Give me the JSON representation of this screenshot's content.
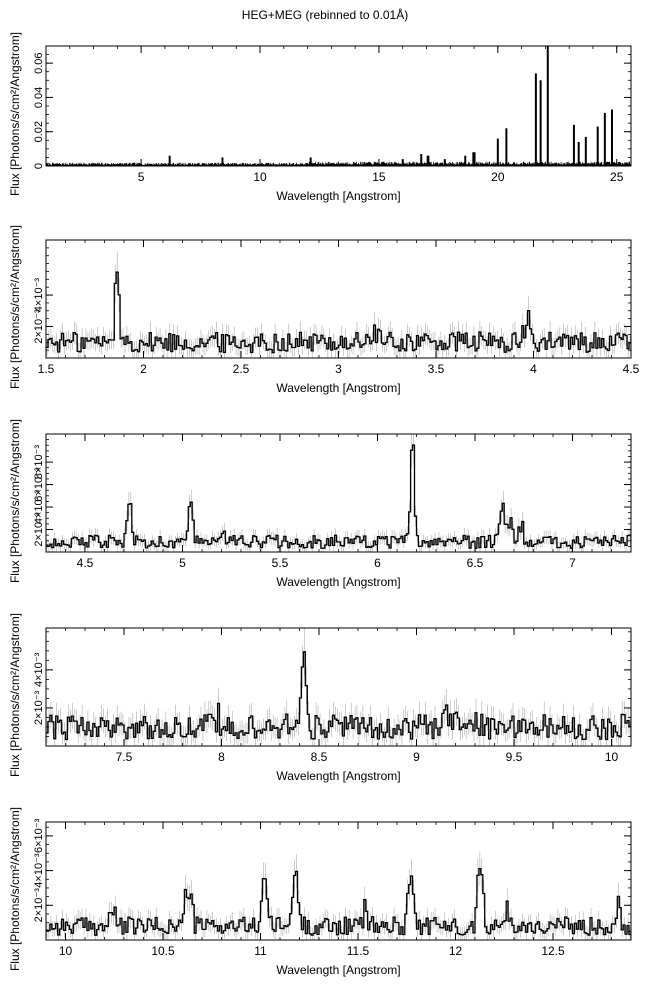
{
  "title": "HEG+MEG (rebinned to 0.01Å)",
  "chart_data": [
    {
      "type": "line",
      "xlabel": "Wavelength [Angstrom]",
      "ylabel": "Flux [Photons/s/cm²/Angstrom]",
      "xlim": [
        1.0,
        25.6
      ],
      "ylim": [
        0,
        0.07
      ],
      "xticks": [
        5,
        10,
        15,
        20,
        25
      ],
      "xtick_labels": [
        "5",
        "10",
        "15",
        "20",
        "25"
      ],
      "yticks": [
        0,
        0.02,
        0.04,
        0.06
      ],
      "ytick_labels": [
        "0",
        "0.02",
        "0.04",
        "0.06"
      ],
      "yscale_label": "",
      "baseline": 0.0015,
      "lines": [
        {
          "x": 6.2,
          "y": 0.006
        },
        {
          "x": 8.42,
          "y": 0.005
        },
        {
          "x": 12.13,
          "y": 0.005
        },
        {
          "x": 16.0,
          "y": 0.004
        },
        {
          "x": 16.78,
          "y": 0.007
        },
        {
          "x": 17.05,
          "y": 0.006
        },
        {
          "x": 17.08,
          "y": 0.006
        },
        {
          "x": 17.77,
          "y": 0.004
        },
        {
          "x": 18.63,
          "y": 0.006
        },
        {
          "x": 18.97,
          "y": 0.008
        },
        {
          "x": 19.02,
          "y": 0.008
        },
        {
          "x": 20.0,
          "y": 0.016
        },
        {
          "x": 20.36,
          "y": 0.022
        },
        {
          "x": 21.6,
          "y": 0.054
        },
        {
          "x": 21.8,
          "y": 0.05
        },
        {
          "x": 22.1,
          "y": 0.07
        },
        {
          "x": 23.2,
          "y": 0.024
        },
        {
          "x": 23.4,
          "y": 0.014
        },
        {
          "x": 23.7,
          "y": 0.017
        },
        {
          "x": 24.2,
          "y": 0.023
        },
        {
          "x": 24.5,
          "y": 0.031
        },
        {
          "x": 24.8,
          "y": 0.033
        }
      ]
    },
    {
      "type": "line",
      "xlabel": "Wavelength [Angstrom]",
      "ylabel": "Flux [Photons/s/cm²/Angstrom]",
      "xlim": [
        1.5,
        4.5
      ],
      "ylim": [
        0,
        0.0075
      ],
      "xticks": [
        1.5,
        2,
        2.5,
        3,
        3.5,
        4,
        4.5
      ],
      "xtick_labels": [
        "1.5",
        "2",
        "2.5",
        "3",
        "3.5",
        "4",
        "4.5"
      ],
      "yticks": [
        0.002,
        0.004
      ],
      "ytick_labels": [
        "2×10⁻³",
        "4×10⁻³"
      ],
      "yscale_label": "",
      "baseline": 0.001,
      "lines": [
        {
          "x": 1.865,
          "y": 0.0048,
          "w": 0.012
        },
        {
          "x": 3.19,
          "y": 0.0017,
          "w": 0.015
        },
        {
          "x": 3.97,
          "y": 0.0022,
          "w": 0.015
        }
      ]
    },
    {
      "type": "line",
      "xlabel": "Wavelength [Angstrom]",
      "ylabel": "Flux [Photons/s/cm²/Angstrom]",
      "xlim": [
        4.3,
        7.3
      ],
      "ylim": [
        0,
        0.0105
      ],
      "xticks": [
        4.5,
        5,
        5.5,
        6,
        6.5,
        7
      ],
      "xtick_labels": [
        "4.5",
        "5",
        "5.5",
        "6",
        "6.5",
        "7"
      ],
      "yticks": [
        0.002,
        0.004,
        0.006,
        0.008
      ],
      "ytick_labels": [
        "2×10⁻³",
        "4×10⁻³",
        "6×10⁻³",
        "8×10⁻³"
      ],
      "yscale_label": "",
      "baseline": 0.0009,
      "lines": [
        {
          "x": 4.73,
          "y": 0.0034,
          "w": 0.012
        },
        {
          "x": 5.04,
          "y": 0.0042,
          "w": 0.012
        },
        {
          "x": 5.21,
          "y": 0.0015,
          "w": 0.015
        },
        {
          "x": 6.18,
          "y": 0.009,
          "w": 0.01
        },
        {
          "x": 6.645,
          "y": 0.0042,
          "w": 0.012
        },
        {
          "x": 6.69,
          "y": 0.0023,
          "w": 0.012
        },
        {
          "x": 6.74,
          "y": 0.0021,
          "w": 0.012
        }
      ]
    },
    {
      "type": "line",
      "xlabel": "Wavelength [Angstrom]",
      "ylabel": "Flux [Photons/s/cm²/Angstrom]",
      "xlim": [
        7.1,
        10.1
      ],
      "ylim": [
        0,
        0.0062
      ],
      "xticks": [
        7.5,
        8,
        8.5,
        9,
        9.5,
        10
      ],
      "xtick_labels": [
        "7.5",
        "8",
        "8.5",
        "9",
        "9.5",
        "10"
      ],
      "yticks": [
        0.002,
        0.004
      ],
      "ytick_labels": [
        "2×10⁻³",
        "4×10⁻³"
      ],
      "yscale_label": "",
      "baseline": 0.001,
      "lines": [
        {
          "x": 7.98,
          "y": 0.0016,
          "w": 0.012
        },
        {
          "x": 8.31,
          "y": 0.0012,
          "w": 0.012
        },
        {
          "x": 8.42,
          "y": 0.0053,
          "w": 0.012
        },
        {
          "x": 9.17,
          "y": 0.0018,
          "w": 0.015
        },
        {
          "x": 9.23,
          "y": 0.0013,
          "w": 0.012
        },
        {
          "x": 9.31,
          "y": 0.0011,
          "w": 0.012
        },
        {
          "x": 9.71,
          "y": 0.0012,
          "w": 0.012
        }
      ]
    },
    {
      "type": "line",
      "xlabel": "Wavelength [Angstrom]",
      "ylabel": "Flux [Photons/s/cm²/Angstrom]",
      "xlim": [
        9.9,
        12.9
      ],
      "ylim": [
        0,
        0.0068
      ],
      "xticks": [
        10,
        10.5,
        11,
        11.5,
        12,
        12.5
      ],
      "xtick_labels": [
        "10",
        "10.5",
        "11",
        "11.5",
        "12",
        "12.5"
      ],
      "yticks": [
        0.002,
        0.004,
        0.006
      ],
      "ytick_labels": [
        "2×10⁻³",
        "4×10⁻³",
        "6×10⁻³"
      ],
      "yscale_label": "",
      "baseline": 0.0008,
      "lines": [
        {
          "x": 10.24,
          "y": 0.0018,
          "w": 0.012
        },
        {
          "x": 10.63,
          "y": 0.0032,
          "w": 0.015
        },
        {
          "x": 11.02,
          "y": 0.0042,
          "w": 0.012
        },
        {
          "x": 11.18,
          "y": 0.0036,
          "w": 0.015
        },
        {
          "x": 11.54,
          "y": 0.0017,
          "w": 0.012
        },
        {
          "x": 11.77,
          "y": 0.0046,
          "w": 0.012
        },
        {
          "x": 12.13,
          "y": 0.0052,
          "w": 0.012
        },
        {
          "x": 12.27,
          "y": 0.0017,
          "w": 0.012
        },
        {
          "x": 12.83,
          "y": 0.0022,
          "w": 0.012
        }
      ]
    }
  ]
}
